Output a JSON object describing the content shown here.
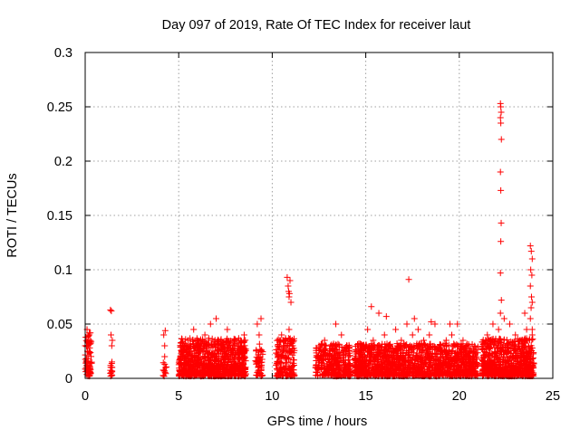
{
  "chart_data": {
    "type": "scatter",
    "title": "Day 097 of 2019, Rate Of TEC Index for receiver laut",
    "xlabel": "GPS time / hours",
    "ylabel": "ROTI / TECUs",
    "xlim": [
      0,
      25
    ],
    "ylim": [
      0,
      0.3
    ],
    "xticks": [
      0,
      5,
      10,
      15,
      20,
      25
    ],
    "xtick_labels": [
      "0",
      "5",
      "10",
      "15",
      "20",
      "25"
    ],
    "yticks": [
      0,
      0.05,
      0.1,
      0.15,
      0.2,
      0.25,
      0.3
    ],
    "ytick_labels": [
      "0",
      "0.05",
      "0.1",
      "0.15",
      "0.2",
      "0.25",
      "0.3"
    ],
    "grid": true,
    "marker": "plus",
    "marker_color": "#ff0000",
    "series": [
      {
        "name": "ROTI",
        "x": [
          0.0,
          0.05,
          0.1,
          0.15,
          0.2,
          0.25,
          0.05,
          0.12,
          0.18,
          0.22,
          0.08,
          0.15,
          0.24,
          0.3,
          1.35,
          1.4,
          1.45,
          1.38,
          1.42,
          1.4,
          1.36,
          1.44,
          4.2,
          4.25,
          4.3,
          4.22,
          4.28,
          4.25,
          5.2,
          5.5,
          5.8,
          6.1,
          6.4,
          6.7,
          7.0,
          7.3,
          7.6,
          7.9,
          8.2,
          8.5,
          5.4,
          6.0,
          6.6,
          7.2,
          7.8,
          8.4,
          5.7,
          6.3,
          6.9,
          7.5,
          8.1,
          9.2,
          9.3,
          9.4,
          9.25,
          9.35,
          9.3,
          10.3,
          10.5,
          10.7,
          10.9,
          11.1,
          10.8,
          10.85,
          10.9,
          10.95,
          11.0,
          10.88,
          10.92,
          12.5,
          12.8,
          13.1,
          13.4,
          13.7,
          14.0,
          13.0,
          13.5,
          12.7,
          13.3,
          14.5,
          14.8,
          15.1,
          15.4,
          15.7,
          16.0,
          16.3,
          16.6,
          16.9,
          17.2,
          17.5,
          17.8,
          18.1,
          18.4,
          18.7,
          19.0,
          19.3,
          19.6,
          19.9,
          20.2,
          20.5,
          20.8,
          15.2,
          15.8,
          16.4,
          17.0,
          17.6,
          18.2,
          18.8,
          19.4,
          20.0,
          20.6,
          17.3,
          15.3,
          17.6,
          19.5,
          16.1,
          18.5,
          21.5,
          21.8,
          22.1,
          22.4,
          22.7,
          23.0,
          23.3,
          23.6,
          23.9,
          21.6,
          22.2,
          22.8,
          23.4,
          22.2,
          22.22,
          22.24,
          22.2,
          22.22,
          22.25,
          22.2,
          22.22,
          22.24,
          22.22,
          22.2,
          22.25,
          22.2,
          23.8,
          23.85,
          23.9,
          23.82,
          23.88,
          23.8,
          23.86,
          23.9,
          23.84,
          23.8,
          23.5,
          23.9
        ],
        "y": [
          0.03,
          0.01,
          0.045,
          0.02,
          0.005,
          0.035,
          0.015,
          0.025,
          0.008,
          0.04,
          0.012,
          0.018,
          0.028,
          0.005,
          0.063,
          0.062,
          0.035,
          0.04,
          0.03,
          0.01,
          0.012,
          0.01,
          0.04,
          0.03,
          0.01,
          0.007,
          0.044,
          0.02,
          0.025,
          0.035,
          0.045,
          0.02,
          0.04,
          0.05,
          0.055,
          0.03,
          0.045,
          0.025,
          0.035,
          0.04,
          0.01,
          0.015,
          0.012,
          0.01,
          0.015,
          0.012,
          0.02,
          0.028,
          0.022,
          0.018,
          0.025,
          0.05,
          0.04,
          0.055,
          0.01,
          0.02,
          0.005,
          0.03,
          0.04,
          0.035,
          0.045,
          0.03,
          0.093,
          0.085,
          0.075,
          0.09,
          0.07,
          0.08,
          0.078,
          0.03,
          0.035,
          0.025,
          0.05,
          0.04,
          0.03,
          0.01,
          0.015,
          0.02,
          0.008,
          0.025,
          0.03,
          0.045,
          0.035,
          0.06,
          0.04,
          0.03,
          0.045,
          0.035,
          0.05,
          0.04,
          0.045,
          0.035,
          0.04,
          0.05,
          0.03,
          0.035,
          0.04,
          0.05,
          0.035,
          0.03,
          0.025,
          0.01,
          0.015,
          0.012,
          0.018,
          0.01,
          0.015,
          0.012,
          0.01,
          0.015,
          0.012,
          0.091,
          0.066,
          0.055,
          0.05,
          0.057,
          0.052,
          0.04,
          0.05,
          0.045,
          0.055,
          0.05,
          0.04,
          0.035,
          0.045,
          0.04,
          0.01,
          0.015,
          0.012,
          0.01,
          0.253,
          0.25,
          0.245,
          0.24,
          0.235,
          0.22,
          0.19,
          0.173,
          0.143,
          0.126,
          0.097,
          0.072,
          0.06,
          0.122,
          0.117,
          0.11,
          0.1,
          0.095,
          0.085,
          0.075,
          0.07,
          0.065,
          0.055,
          0.06,
          0.045
        ]
      }
    ],
    "clusters": [
      {
        "from": 0.0,
        "to": 0.35,
        "ymax": 0.04,
        "n": 60
      },
      {
        "from": 1.3,
        "to": 1.5,
        "ymax": 0.015,
        "n": 12
      },
      {
        "from": 4.15,
        "to": 4.35,
        "ymax": 0.015,
        "n": 10
      },
      {
        "from": 5.0,
        "to": 8.6,
        "ymax": 0.035,
        "n": 900
      },
      {
        "from": 9.1,
        "to": 9.5,
        "ymax": 0.03,
        "n": 50
      },
      {
        "from": 10.2,
        "to": 11.2,
        "ymax": 0.035,
        "n": 160
      },
      {
        "from": 12.3,
        "to": 14.2,
        "ymax": 0.03,
        "n": 320
      },
      {
        "from": 14.4,
        "to": 21.0,
        "ymax": 0.03,
        "n": 1400
      },
      {
        "from": 21.2,
        "to": 24.0,
        "ymax": 0.035,
        "n": 700
      }
    ]
  }
}
